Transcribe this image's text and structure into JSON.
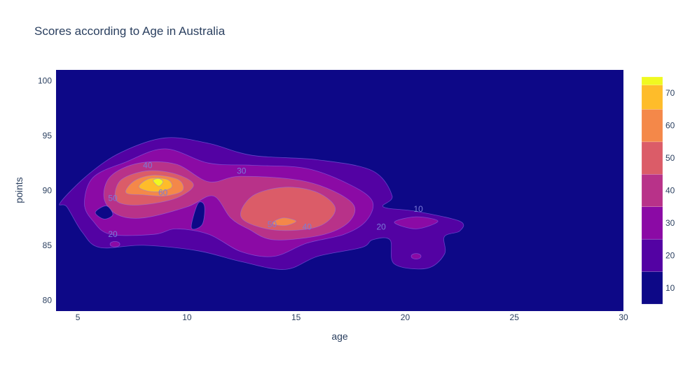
{
  "chart_data": {
    "type": "contour",
    "title": "Scores according to Age in Australia",
    "xlabel": "age",
    "ylabel": "points",
    "xlim": [
      4,
      30
    ],
    "ylim": [
      79,
      101
    ],
    "x_ticks": [
      5,
      10,
      15,
      20,
      25,
      30
    ],
    "y_ticks": [
      80,
      85,
      90,
      95,
      100
    ],
    "colorbar": {
      "ticks": [
        10,
        20,
        30,
        40,
        50,
        60,
        70
      ],
      "range": [
        5,
        75
      ],
      "levels": [
        {
          "from": 5,
          "to": 15,
          "color": "#0d0887"
        },
        {
          "from": 15,
          "to": 25,
          "color": "#5302a3"
        },
        {
          "from": 25,
          "to": 35,
          "color": "#8b0aa5"
        },
        {
          "from": 35,
          "to": 45,
          "color": "#b83289"
        },
        {
          "from": 45,
          "to": 55,
          "color": "#db5c68"
        },
        {
          "from": 55,
          "to": 65,
          "color": "#f48849"
        },
        {
          "from": 65,
          "to": 72.5,
          "color": "#febc2a"
        },
        {
          "from": 72.5,
          "to": 75,
          "color": "#f0f921"
        }
      ]
    },
    "contour_labels": [
      {
        "text": "40",
        "x": 8.2,
        "y": 92.3
      },
      {
        "text": "30",
        "x": 12.5,
        "y": 91.8
      },
      {
        "text": "50",
        "x": 6.6,
        "y": 89.3
      },
      {
        "text": "60",
        "x": 8.9,
        "y": 89.8
      },
      {
        "text": "20",
        "x": 6.6,
        "y": 86.0
      },
      {
        "text": "50",
        "x": 13.9,
        "y": 86.9
      },
      {
        "text": "40",
        "x": 15.5,
        "y": 86.7
      },
      {
        "text": "10",
        "x": 20.6,
        "y": 88.3
      },
      {
        "text": "20",
        "x": 18.9,
        "y": 86.7
      }
    ],
    "regions": [
      {
        "level": 15,
        "points": [
          [
            4.2,
            88.9
          ],
          [
            5.5,
            91.5
          ],
          [
            7,
            93.5
          ],
          [
            9,
            94.8
          ],
          [
            11,
            94.3
          ],
          [
            13,
            93.2
          ],
          [
            16,
            92.8
          ],
          [
            18.5,
            91.8
          ],
          [
            19.4,
            89.5
          ],
          [
            19,
            88.5
          ],
          [
            20.5,
            88.1
          ],
          [
            22.5,
            87.2
          ],
          [
            22.5,
            86.3
          ],
          [
            21.8,
            85.8
          ],
          [
            21.8,
            84.2
          ],
          [
            21,
            82.9
          ],
          [
            19.5,
            83.3
          ],
          [
            19.3,
            85.5
          ],
          [
            18.5,
            85.5
          ],
          [
            18,
            84.8
          ],
          [
            16,
            84.0
          ],
          [
            14.5,
            82.8
          ],
          [
            12.5,
            83.5
          ],
          [
            10.5,
            84.5
          ],
          [
            8,
            85.0
          ],
          [
            6,
            84.8
          ],
          [
            5.2,
            86.2
          ],
          [
            4.5,
            88.5
          ]
        ]
      },
      {
        "level": 25,
        "points": [
          [
            5.3,
            88.8
          ],
          [
            5.7,
            91.2
          ],
          [
            7.2,
            92.6
          ],
          [
            9,
            93.8
          ],
          [
            11,
            92.5
          ],
          [
            13,
            92.3
          ],
          [
            15.5,
            92.0
          ],
          [
            17.5,
            90.5
          ],
          [
            18.5,
            89.0
          ],
          [
            18.2,
            87.2
          ],
          [
            17.2,
            86.0
          ],
          [
            15.5,
            85.2
          ],
          [
            14,
            84.0
          ],
          [
            12.5,
            84.4
          ],
          [
            11,
            86.0
          ],
          [
            9.5,
            86.5
          ],
          [
            8.5,
            86.0
          ],
          [
            6.5,
            86.0
          ],
          [
            5.7,
            87.2
          ]
        ]
      },
      {
        "level": 25,
        "points": [
          [
            19.5,
            87.1
          ],
          [
            20.5,
            87.6
          ],
          [
            21.5,
            87.2
          ],
          [
            20.5,
            86.5
          ]
        ]
      },
      {
        "level": 35,
        "points": [
          [
            6.2,
            89.3
          ],
          [
            6.5,
            91.3
          ],
          [
            7.8,
            92.5
          ],
          [
            9.5,
            92.4
          ],
          [
            11,
            90.8
          ],
          [
            12.5,
            91.3
          ],
          [
            15.5,
            90.8
          ],
          [
            17.5,
            89.0
          ],
          [
            17.5,
            87.3
          ],
          [
            16.3,
            86.0
          ],
          [
            14,
            85.5
          ],
          [
            12.8,
            86.5
          ],
          [
            12,
            87.5
          ],
          [
            11.2,
            89.5
          ],
          [
            10,
            88.5
          ],
          [
            8,
            87.5
          ],
          [
            6.8,
            87.8
          ]
        ]
      },
      {
        "level": 45,
        "points": [
          [
            6.7,
            89.5
          ],
          [
            7.0,
            91.0
          ],
          [
            8.2,
            91.8
          ],
          [
            9.5,
            91.5
          ],
          [
            10.3,
            90.5
          ],
          [
            9.5,
            89.3
          ],
          [
            8,
            88.7
          ],
          [
            7,
            88.8
          ]
        ]
      },
      {
        "level": 45,
        "points": [
          [
            12.5,
            87.5
          ],
          [
            13,
            89.5
          ],
          [
            14.5,
            90.3
          ],
          [
            16,
            89.8
          ],
          [
            16.8,
            88.3
          ],
          [
            16,
            86.7
          ],
          [
            14,
            86.4
          ]
        ]
      },
      {
        "level": 55,
        "points": [
          [
            7.2,
            89.8
          ],
          [
            7.6,
            90.9
          ],
          [
            8.5,
            91.4
          ],
          [
            9.6,
            91.0
          ],
          [
            9.8,
            90.0
          ],
          [
            9.0,
            89.5
          ],
          [
            8.0,
            89.6
          ]
        ]
      },
      {
        "level": 55,
        "points": [
          [
            13.9,
            87.0
          ],
          [
            14.4,
            87.5
          ],
          [
            15.0,
            87.2
          ],
          [
            14.5,
            86.8
          ]
        ]
      },
      {
        "level": 65,
        "points": [
          [
            7.8,
            90.4
          ],
          [
            8.3,
            91.1
          ],
          [
            9.1,
            91.0
          ],
          [
            9.3,
            90.3
          ],
          [
            8.7,
            89.9
          ],
          [
            8.1,
            90.0
          ]
        ]
      },
      {
        "level": 73,
        "points": [
          [
            8.45,
            90.9
          ],
          [
            8.7,
            91.1
          ],
          [
            8.9,
            90.8
          ],
          [
            8.7,
            90.4
          ]
        ]
      },
      {
        "level": 5,
        "points": [
          [
            10.2,
            86.6
          ],
          [
            10.5,
            88.8
          ],
          [
            10.8,
            88.6
          ],
          [
            10.7,
            86.9
          ]
        ]
      },
      {
        "level": 5,
        "points": [
          [
            5.8,
            88.0
          ],
          [
            6.3,
            88.6
          ],
          [
            6.6,
            87.8
          ],
          [
            6.2,
            87.4
          ]
        ]
      }
    ],
    "small_blobs": [
      {
        "level": 25,
        "x": 6.7,
        "y": 85.1
      },
      {
        "level": 25,
        "x": 20.5,
        "y": 84.0
      }
    ]
  }
}
